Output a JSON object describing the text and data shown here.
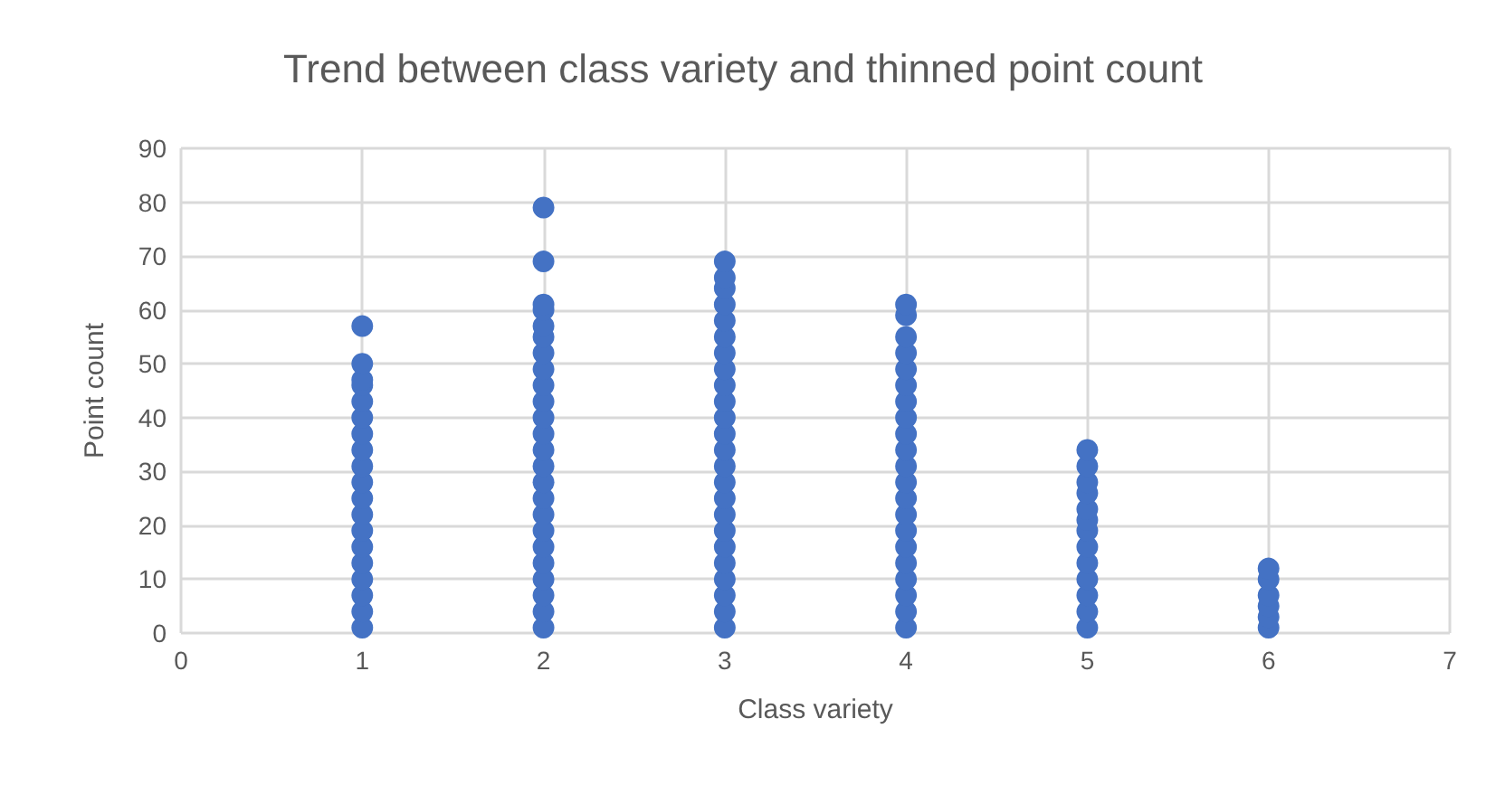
{
  "chart_data": {
    "type": "scatter",
    "title": "Trend between class variety and thinned point count",
    "xlabel": "Class variety",
    "ylabel": "Point count",
    "x": [
      1,
      1,
      1,
      1,
      1,
      1,
      1,
      1,
      1,
      1,
      1,
      1,
      1,
      1,
      1,
      1,
      1,
      1,
      1,
      2,
      2,
      2,
      2,
      2,
      2,
      2,
      2,
      2,
      2,
      2,
      2,
      2,
      2,
      2,
      2,
      2,
      2,
      2,
      2,
      2,
      2,
      2,
      2,
      3,
      3,
      3,
      3,
      3,
      3,
      3,
      3,
      3,
      3,
      3,
      3,
      3,
      3,
      3,
      3,
      3,
      3,
      3,
      3,
      3,
      3,
      3,
      3,
      4,
      4,
      4,
      4,
      4,
      4,
      4,
      4,
      4,
      4,
      4,
      4,
      4,
      4,
      4,
      4,
      4,
      4,
      4,
      4,
      4,
      5,
      5,
      5,
      5,
      5,
      5,
      5,
      5,
      5,
      5,
      5,
      5,
      5,
      6,
      6,
      6,
      6,
      6,
      6
    ],
    "values": [
      1,
      4,
      7,
      10,
      13,
      16,
      19,
      22,
      25,
      28,
      31,
      34,
      37,
      40,
      43,
      46,
      47,
      50,
      57,
      1,
      4,
      7,
      10,
      13,
      16,
      19,
      22,
      25,
      28,
      31,
      34,
      37,
      40,
      43,
      46,
      49,
      52,
      55,
      57,
      60,
      61,
      69,
      79,
      1,
      4,
      7,
      10,
      13,
      16,
      19,
      22,
      25,
      28,
      31,
      34,
      37,
      40,
      43,
      46,
      49,
      52,
      55,
      58,
      61,
      64,
      66,
      69,
      1,
      4,
      7,
      10,
      13,
      16,
      19,
      22,
      25,
      28,
      31,
      34,
      37,
      40,
      43,
      46,
      49,
      52,
      55,
      59,
      61,
      1,
      4,
      7,
      10,
      13,
      16,
      19,
      21,
      23,
      26,
      28,
      31,
      34,
      1,
      3,
      5,
      7,
      10,
      12
    ],
    "color": "#4472c4",
    "marker": "circle",
    "grid": true,
    "xlim": [
      0,
      7
    ],
    "xticks": [
      0,
      1,
      2,
      3,
      4,
      5,
      6,
      7
    ],
    "ylim": [
      0,
      90
    ],
    "yticks": [
      0,
      10,
      20,
      30,
      40,
      50,
      60,
      70,
      80,
      90
    ]
  }
}
